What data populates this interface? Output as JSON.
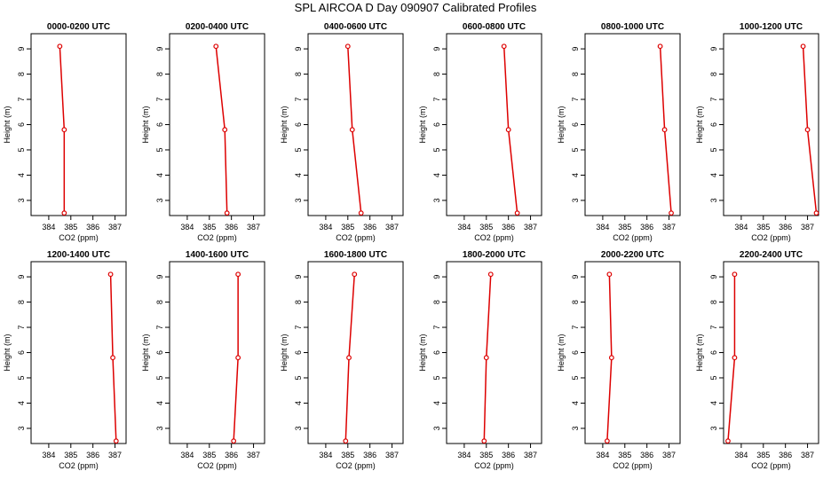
{
  "title": "SPL AIRCOA D  Day 090907  Calibrated Profiles",
  "chart_data": [
    {
      "type": "line",
      "title": "0000-0200 UTC",
      "x_label": "CO2 (ppm)",
      "y_label": "Height (m)",
      "color": "#dd0000",
      "x": [
        384.5,
        384.7,
        384.7
      ],
      "y": [
        9.1,
        5.8,
        2.5
      ],
      "xlim": [
        383.2,
        387.5
      ],
      "ylim": [
        2.4,
        9.6
      ],
      "xticks": [
        384,
        385,
        386,
        387
      ],
      "yticks": [
        3,
        4,
        5,
        6,
        7,
        8,
        9
      ]
    },
    {
      "type": "line",
      "title": "0200-0400 UTC",
      "x_label": "CO2 (ppm)",
      "y_label": "Height (m)",
      "color": "#dd0000",
      "x": [
        385.3,
        385.7,
        385.8
      ],
      "y": [
        9.1,
        5.8,
        2.5
      ],
      "xlim": [
        383.2,
        387.5
      ],
      "ylim": [
        2.4,
        9.6
      ],
      "xticks": [
        384,
        385,
        386,
        387
      ],
      "yticks": [
        3,
        4,
        5,
        6,
        7,
        8,
        9
      ]
    },
    {
      "type": "line",
      "title": "0400-0600 UTC",
      "x_label": "CO2 (ppm)",
      "y_label": "Height (m)",
      "color": "#dd0000",
      "x": [
        385.0,
        385.2,
        385.6
      ],
      "y": [
        9.1,
        5.8,
        2.5
      ],
      "xlim": [
        383.2,
        387.5
      ],
      "ylim": [
        2.4,
        9.6
      ],
      "xticks": [
        384,
        385,
        386,
        387
      ],
      "yticks": [
        3,
        4,
        5,
        6,
        7,
        8,
        9
      ]
    },
    {
      "type": "line",
      "title": "0600-0800 UTC",
      "x_label": "CO2 (ppm)",
      "y_label": "Height (m)",
      "color": "#dd0000",
      "x": [
        385.8,
        386.0,
        386.4
      ],
      "y": [
        9.1,
        5.8,
        2.5
      ],
      "xlim": [
        383.2,
        387.5
      ],
      "ylim": [
        2.4,
        9.6
      ],
      "xticks": [
        384,
        385,
        386,
        387
      ],
      "yticks": [
        3,
        4,
        5,
        6,
        7,
        8,
        9
      ]
    },
    {
      "type": "line",
      "title": "0800-1000 UTC",
      "x_label": "CO2 (ppm)",
      "y_label": "Height (m)",
      "color": "#dd0000",
      "x": [
        386.6,
        386.8,
        387.1
      ],
      "y": [
        9.1,
        5.8,
        2.5
      ],
      "xlim": [
        383.2,
        387.5
      ],
      "ylim": [
        2.4,
        9.6
      ],
      "xticks": [
        384,
        385,
        386,
        387
      ],
      "yticks": [
        3,
        4,
        5,
        6,
        7,
        8,
        9
      ]
    },
    {
      "type": "line",
      "title": "1000-1200 UTC",
      "x_label": "CO2 (ppm)",
      "y_label": "Height (m)",
      "color": "#dd0000",
      "x": [
        386.8,
        387.0,
        387.4
      ],
      "y": [
        9.1,
        5.8,
        2.5
      ],
      "xlim": [
        383.2,
        387.5
      ],
      "ylim": [
        2.4,
        9.6
      ],
      "xticks": [
        384,
        385,
        386,
        387
      ],
      "yticks": [
        3,
        4,
        5,
        6,
        7,
        8,
        9
      ]
    },
    {
      "type": "line",
      "title": "1200-1400 UTC",
      "x_label": "CO2 (ppm)",
      "y_label": "Height (m)",
      "color": "#dd0000",
      "x": [
        386.8,
        386.9,
        387.05
      ],
      "y": [
        9.1,
        5.8,
        2.5
      ],
      "xlim": [
        383.2,
        387.5
      ],
      "ylim": [
        2.4,
        9.6
      ],
      "xticks": [
        384,
        385,
        386,
        387
      ],
      "yticks": [
        3,
        4,
        5,
        6,
        7,
        8,
        9
      ]
    },
    {
      "type": "line",
      "title": "1400-1600 UTC",
      "x_label": "CO2 (ppm)",
      "y_label": "Height (m)",
      "color": "#dd0000",
      "x": [
        386.3,
        386.3,
        386.1
      ],
      "y": [
        9.1,
        5.8,
        2.5
      ],
      "xlim": [
        383.2,
        387.5
      ],
      "ylim": [
        2.4,
        9.6
      ],
      "xticks": [
        384,
        385,
        386,
        387
      ],
      "yticks": [
        3,
        4,
        5,
        6,
        7,
        8,
        9
      ]
    },
    {
      "type": "line",
      "title": "1600-1800 UTC",
      "x_label": "CO2 (ppm)",
      "y_label": "Height (m)",
      "color": "#dd0000",
      "x": [
        385.3,
        385.05,
        384.9
      ],
      "y": [
        9.1,
        5.8,
        2.5
      ],
      "xlim": [
        383.2,
        387.5
      ],
      "ylim": [
        2.4,
        9.6
      ],
      "xticks": [
        384,
        385,
        386,
        387
      ],
      "yticks": [
        3,
        4,
        5,
        6,
        7,
        8,
        9
      ]
    },
    {
      "type": "line",
      "title": "1800-2000 UTC",
      "x_label": "CO2 (ppm)",
      "y_label": "Height (m)",
      "color": "#dd0000",
      "x": [
        385.2,
        385.0,
        384.9
      ],
      "y": [
        9.1,
        5.8,
        2.5
      ],
      "xlim": [
        383.2,
        387.5
      ],
      "ylim": [
        2.4,
        9.6
      ],
      "xticks": [
        384,
        385,
        386,
        387
      ],
      "yticks": [
        3,
        4,
        5,
        6,
        7,
        8,
        9
      ]
    },
    {
      "type": "line",
      "title": "2000-2200 UTC",
      "x_label": "CO2 (ppm)",
      "y_label": "Height (m)",
      "color": "#dd0000",
      "x": [
        384.3,
        384.4,
        384.2
      ],
      "y": [
        9.1,
        5.8,
        2.5
      ],
      "xlim": [
        383.2,
        387.5
      ],
      "ylim": [
        2.4,
        9.6
      ],
      "xticks": [
        384,
        385,
        386,
        387
      ],
      "yticks": [
        3,
        4,
        5,
        6,
        7,
        8,
        9
      ]
    },
    {
      "type": "line",
      "title": "2200-2400 UTC",
      "x_label": "CO2 (ppm)",
      "y_label": "Height (m)",
      "color": "#dd0000",
      "x": [
        383.7,
        383.7,
        383.4
      ],
      "y": [
        9.1,
        5.8,
        2.5
      ],
      "xlim": [
        383.2,
        387.5
      ],
      "ylim": [
        2.4,
        9.6
      ],
      "xticks": [
        384,
        385,
        386,
        387
      ],
      "yticks": [
        3,
        4,
        5,
        6,
        7,
        8,
        9
      ]
    }
  ]
}
